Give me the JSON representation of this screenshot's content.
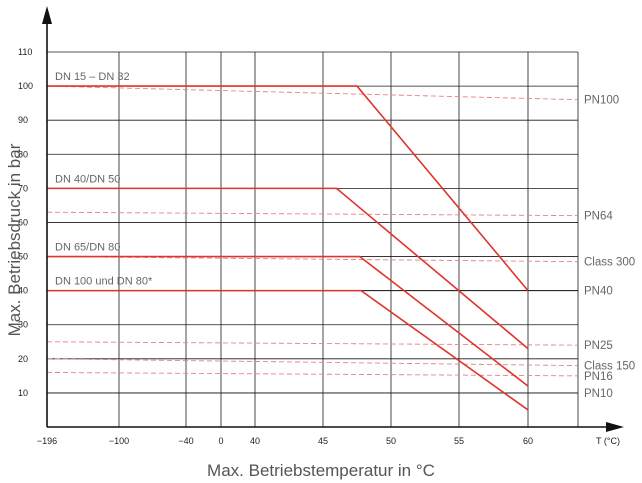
{
  "chart_data": {
    "type": "line",
    "xlabel": "Max. Betriebstemperatur in °C",
    "ylabel": "Max. Betriebsdruck in bar",
    "x_unit_label": "T (°C)",
    "x_ticks": [
      "−196",
      "−100",
      "−40",
      "0",
      "40",
      "45",
      "50",
      "55",
      "60"
    ],
    "y_ticks": [
      "10",
      "20",
      "30",
      "40",
      "50",
      "60",
      "70",
      "80",
      "90",
      "100",
      "110"
    ],
    "ylim": [
      0,
      110
    ],
    "grid": true,
    "series": [
      {
        "name": "DN 15 – DN 32",
        "x": [
          "−196",
          "47.5",
          "60"
        ],
        "y": [
          100,
          100,
          40
        ]
      },
      {
        "name": "DN 40/DN 50",
        "x": [
          "−196",
          "46",
          "60"
        ],
        "y": [
          70,
          70,
          23
        ]
      },
      {
        "name": "DN 65/DN 80",
        "x": [
          "−196",
          "47.7",
          "60"
        ],
        "y": [
          50,
          50,
          12
        ]
      },
      {
        "name": "DN 100 und DN 80*",
        "x": [
          "−196",
          "47.8",
          "60"
        ],
        "y": [
          40,
          40,
          5
        ]
      }
    ],
    "pressure_ratings": [
      {
        "name": "PN100",
        "y_start": 100,
        "y_end": 96,
        "style": "dashed"
      },
      {
        "name": "PN64",
        "y_start": 63,
        "y_end": 62,
        "style": "dashed"
      },
      {
        "name": "Class 300",
        "y_start": 50,
        "y_end": 48.5,
        "style": "dashed"
      },
      {
        "name": "PN40",
        "y_start": 40,
        "y_end": 40,
        "style": "solid"
      },
      {
        "name": "PN25",
        "y_start": 25,
        "y_end": 24,
        "style": "dashed"
      },
      {
        "name": "Class 150",
        "y_start": 20,
        "y_end": 18,
        "style": "dashed"
      },
      {
        "name": "PN16",
        "y_start": 16,
        "y_end": 15,
        "style": "dashed"
      },
      {
        "name": "PN10",
        "y_start": 10,
        "y_end": 10,
        "style": "solid"
      }
    ],
    "colors": {
      "curve": "#e0342c",
      "rating_dashed": "#e88080",
      "grid": "#1a1a1a",
      "text": "#666666"
    }
  }
}
